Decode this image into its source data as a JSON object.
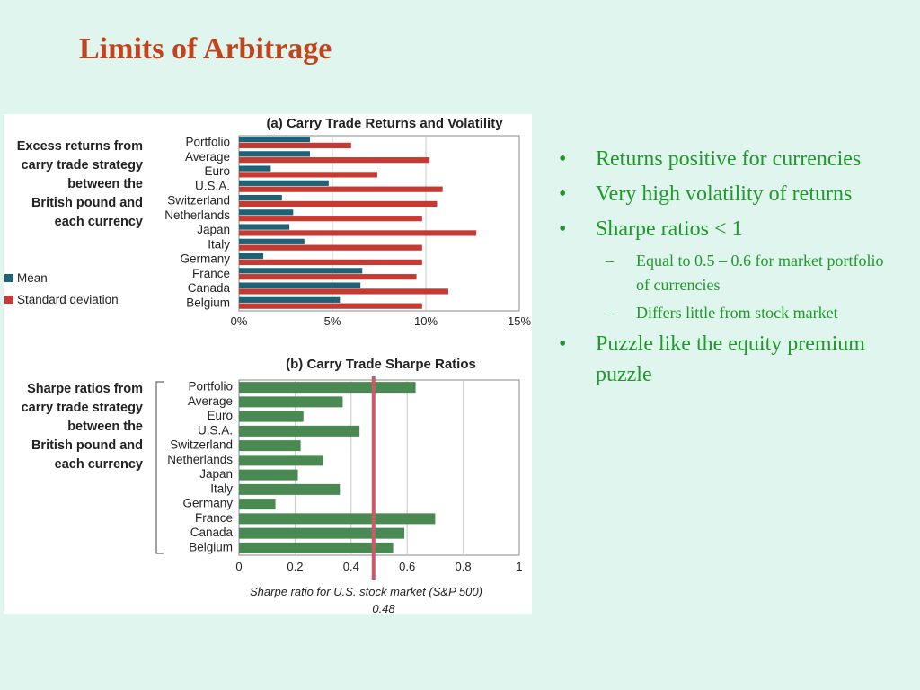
{
  "slide": {
    "title": "Limits of Arbitrage"
  },
  "figure": {
    "side_label_a": [
      "Excess returns from",
      "carry trade strategy",
      "between the",
      "British pound and",
      "each currency"
    ],
    "side_label_b": [
      "Sharpe ratios from",
      "carry trade strategy",
      "between the",
      "British pound and",
      "each currency"
    ],
    "legend": [
      {
        "label": "Mean",
        "color": "#1d6277"
      },
      {
        "label": "Standard deviation",
        "color": "#c33b33"
      }
    ],
    "annotation_line1": "Sharpe ratio for U.S. stock market (S&P 500)",
    "annotation_line2": "0.48"
  },
  "chart_data": [
    {
      "type": "bar",
      "orientation": "horizontal",
      "title": "(a) Carry Trade Returns and Volatility",
      "categories": [
        "Portfolio",
        "Average",
        "Euro",
        "U.S.A.",
        "Switzerland",
        "Netherlands",
        "Japan",
        "Italy",
        "Germany",
        "France",
        "Canada",
        "Belgium"
      ],
      "series": [
        {
          "name": "Mean",
          "color": "#1d6277",
          "values": [
            3.8,
            3.8,
            1.7,
            4.8,
            2.3,
            2.9,
            2.7,
            3.5,
            1.3,
            6.6,
            6.5,
            5.4
          ]
        },
        {
          "name": "Standard deviation",
          "color": "#c33b33",
          "values": [
            6.0,
            10.2,
            7.4,
            10.9,
            10.6,
            9.8,
            12.7,
            9.8,
            9.8,
            9.5,
            11.2,
            9.8
          ]
        }
      ],
      "xlim": [
        0,
        15
      ],
      "xticks": [
        "0%",
        "5%",
        "10%",
        "15%"
      ],
      "grid": true
    },
    {
      "type": "bar",
      "orientation": "horizontal",
      "title": "(b) Carry Trade Sharpe Ratios",
      "categories": [
        "Portfolio",
        "Average",
        "Euro",
        "U.S.A.",
        "Switzerland",
        "Netherlands",
        "Japan",
        "Italy",
        "Germany",
        "France",
        "Canada",
        "Belgium"
      ],
      "values": [
        0.63,
        0.37,
        0.23,
        0.43,
        0.22,
        0.3,
        0.21,
        0.36,
        0.13,
        0.7,
        0.59,
        0.55
      ],
      "color": "#4a8a52",
      "xlim": [
        0,
        1
      ],
      "xticks": [
        "0",
        "0.2",
        "0.4",
        "0.6",
        "0.8",
        "1"
      ],
      "reference_line": {
        "value": 0.48,
        "color": "#cc5a66"
      },
      "grid": true
    }
  ],
  "bullets": [
    {
      "level": 1,
      "text": "Returns positive for currencies"
    },
    {
      "level": 1,
      "text": "Very high volatility of returns"
    },
    {
      "level": 1,
      "text": "Sharpe ratios < 1"
    },
    {
      "level": 2,
      "text": "Equal to 0.5 – 0.6 for market portfolio of currencies"
    },
    {
      "level": 2,
      "text": "Differs little from stock market"
    },
    {
      "level": 1,
      "text": "Puzzle like the equity premium puzzle"
    }
  ]
}
